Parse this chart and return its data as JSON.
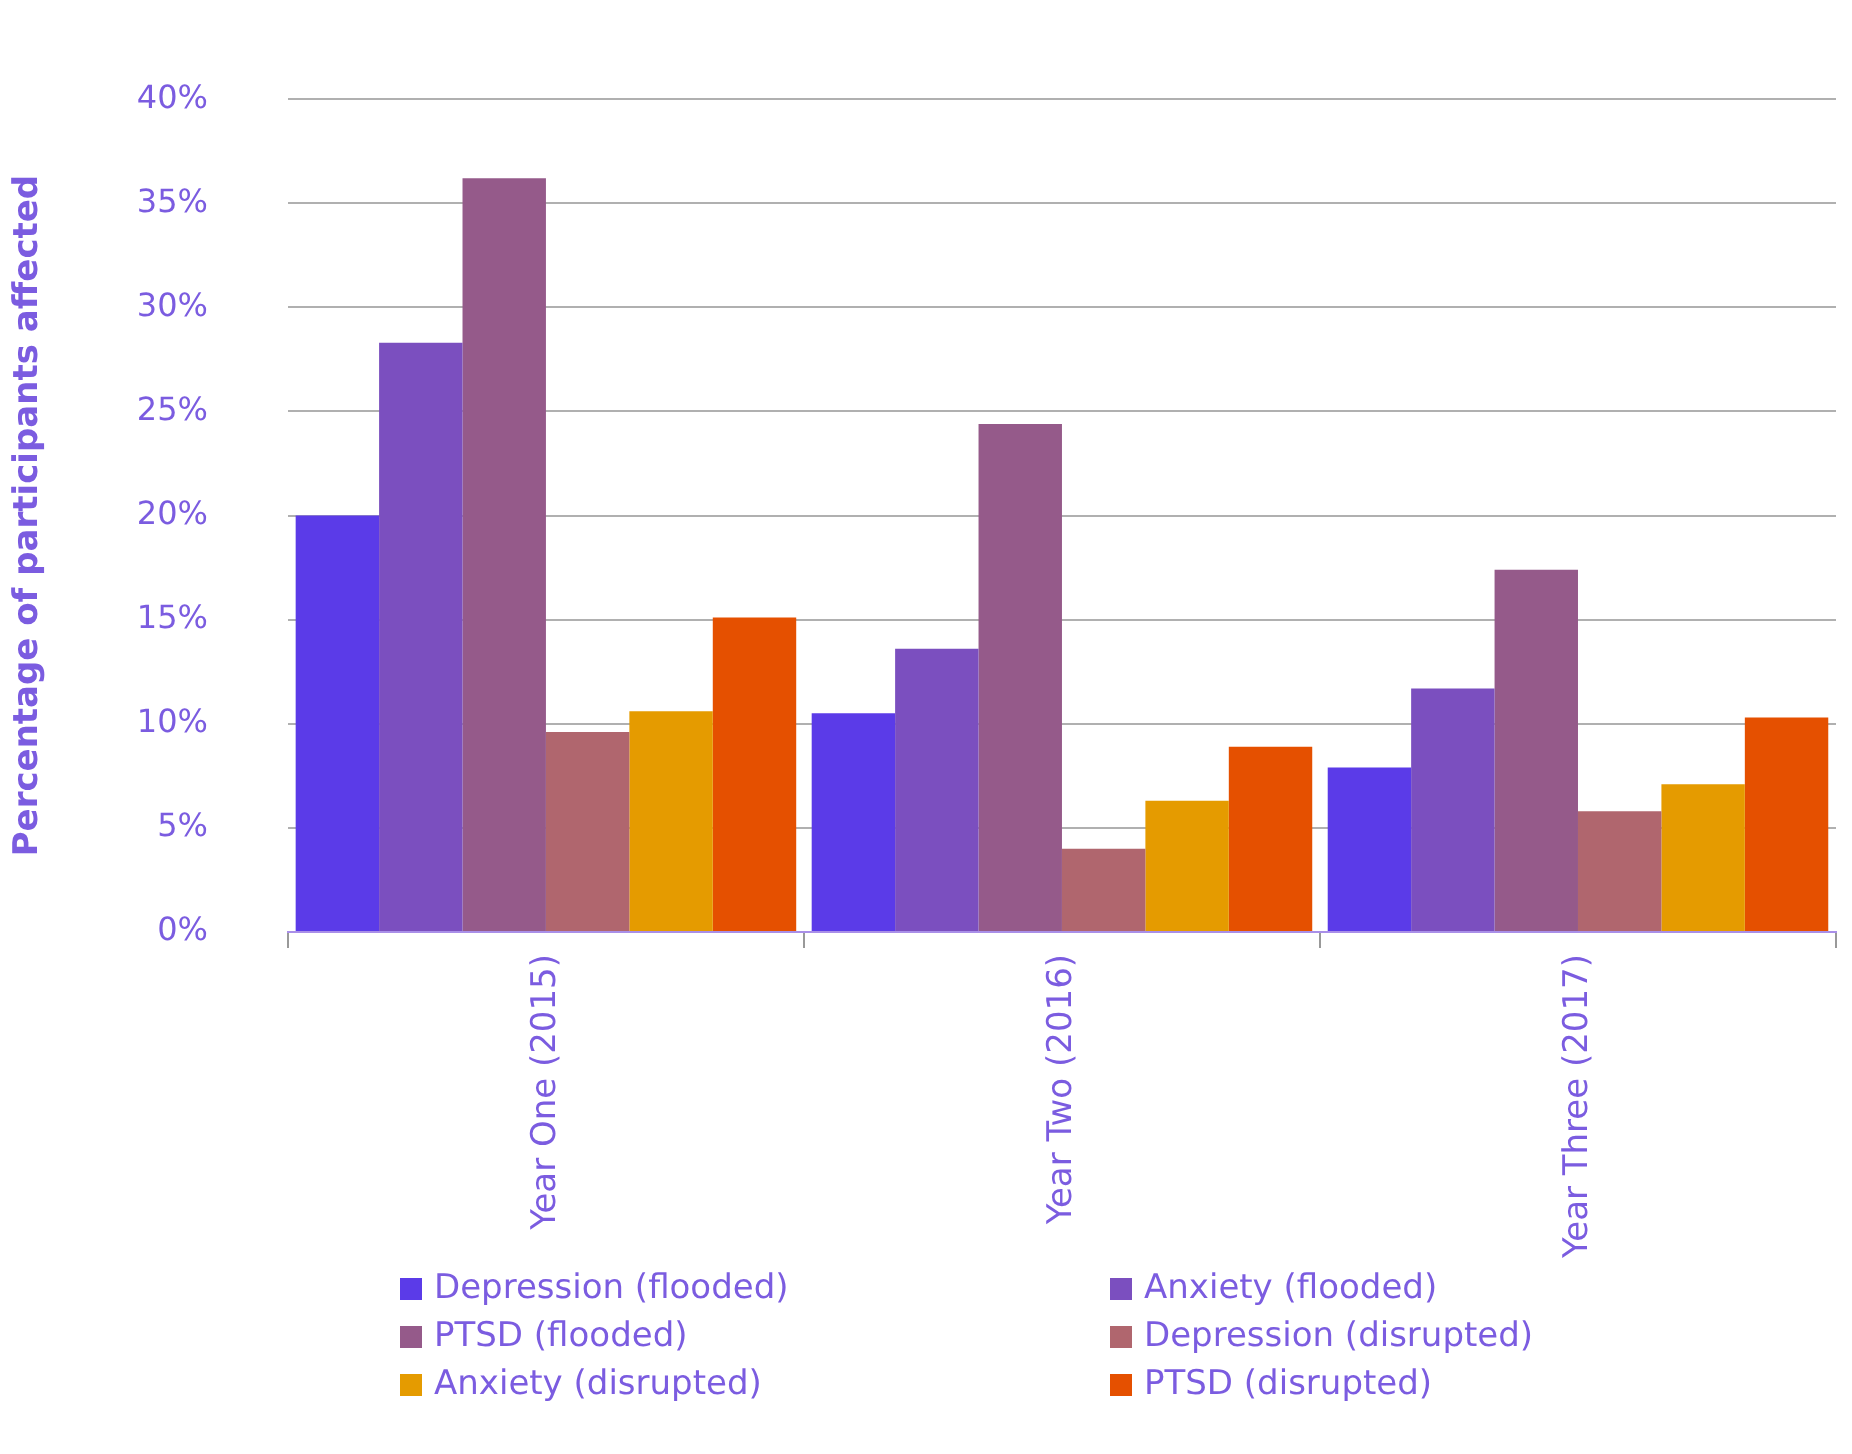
{
  "chart_data": {
    "type": "bar",
    "ylabel": "Percentage of participants affected",
    "categories": [
      "Year One (2015)",
      "Year Two (2016)",
      "Year Three (2017)"
    ],
    "series": [
      {
        "name": "Depression (flooded)",
        "color": "#5b3be8",
        "values": [
          20.0,
          10.5,
          7.9
        ]
      },
      {
        "name": "Anxiety (flooded)",
        "color": "#7b4fbf",
        "values": [
          28.3,
          13.6,
          11.7
        ]
      },
      {
        "name": "PTSD (flooded)",
        "color": "#955a8a",
        "values": [
          36.2,
          24.4,
          17.4
        ]
      },
      {
        "name": "Depression (disrupted)",
        "color": "#b0666e",
        "values": [
          9.6,
          4.0,
          5.8
        ]
      },
      {
        "name": "Anxiety (disrupted)",
        "color": "#e59b00",
        "values": [
          10.6,
          6.3,
          7.1
        ]
      },
      {
        "name": "PTSD (disrupted)",
        "color": "#e55000",
        "values": [
          15.1,
          8.9,
          10.3
        ]
      }
    ],
    "ylim": [
      0,
      40
    ],
    "yticks": [
      {
        "value": 0,
        "label": "0%"
      },
      {
        "value": 5,
        "label": "5%"
      },
      {
        "value": 10,
        "label": "10%"
      },
      {
        "value": 15,
        "label": "15%"
      },
      {
        "value": 20,
        "label": "20%"
      },
      {
        "value": 25,
        "label": "25%"
      },
      {
        "value": 30,
        "label": "30%"
      },
      {
        "value": 35,
        "label": "35%"
      },
      {
        "value": 40,
        "label": "40%"
      }
    ],
    "grid": "y",
    "legend": "bottom"
  }
}
